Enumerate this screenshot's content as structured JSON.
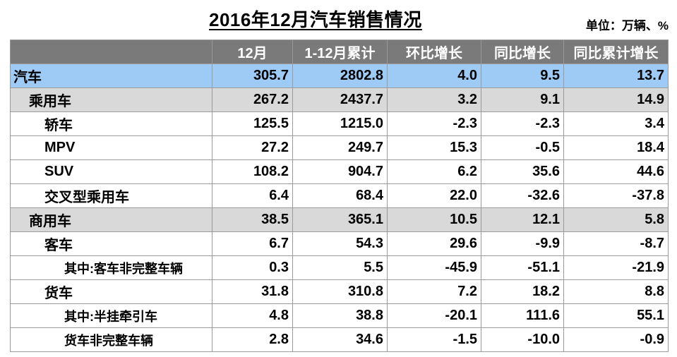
{
  "title": "2016年12月汽车销售情况",
  "unit": "单位：万辆、%",
  "columns": [
    "",
    "12月",
    "1-12月累计",
    "环比增长",
    "同比增长",
    "同比累计增长"
  ],
  "rows": [
    {
      "name": "汽车",
      "level": 0,
      "values": [
        "305.7",
        "2802.8",
        "4.0",
        "9.5",
        "13.7"
      ]
    },
    {
      "name": "乘用车",
      "level": 1,
      "values": [
        "267.2",
        "2437.7",
        "3.2",
        "9.1",
        "14.9"
      ]
    },
    {
      "name": "轿车",
      "level": 2,
      "values": [
        "125.5",
        "1215.0",
        "-2.3",
        "-2.3",
        "3.4"
      ]
    },
    {
      "name": "MPV",
      "level": 2,
      "values": [
        "27.2",
        "249.7",
        "15.3",
        "-0.5",
        "18.4"
      ]
    },
    {
      "name": "SUV",
      "level": 2,
      "values": [
        "108.2",
        "904.7",
        "6.2",
        "35.6",
        "44.6"
      ]
    },
    {
      "name": "交叉型乘用车",
      "level": 2,
      "values": [
        "6.4",
        "68.4",
        "22.0",
        "-32.6",
        "-37.8"
      ]
    },
    {
      "name": "商用车",
      "level": 1,
      "values": [
        "38.5",
        "365.1",
        "10.5",
        "12.1",
        "5.8"
      ]
    },
    {
      "name": "客车",
      "level": 2,
      "values": [
        "6.7",
        "54.3",
        "29.6",
        "-9.9",
        "-8.7"
      ]
    },
    {
      "name": "其中:客车非完整车辆",
      "level": 3,
      "values": [
        "0.3",
        "5.5",
        "-45.9",
        "-51.1",
        "-21.9"
      ]
    },
    {
      "name": "货车",
      "level": 2,
      "values": [
        "31.8",
        "310.8",
        "7.2",
        "18.2",
        "8.8"
      ]
    },
    {
      "name": "其中:半挂牵引车",
      "level": 3,
      "values": [
        "4.8",
        "38.8",
        "-20.1",
        "111.6",
        "55.1"
      ]
    },
    {
      "name": "货车非完整车辆",
      "level": 3,
      "values": [
        "2.8",
        "34.6",
        "-1.5",
        "-10.0",
        "-0.9"
      ]
    }
  ],
  "colors": {
    "header_bg": "#7a7a7a",
    "total_row_bg": "#9ecbf6",
    "category_row_bg": "#d9d9d9"
  }
}
